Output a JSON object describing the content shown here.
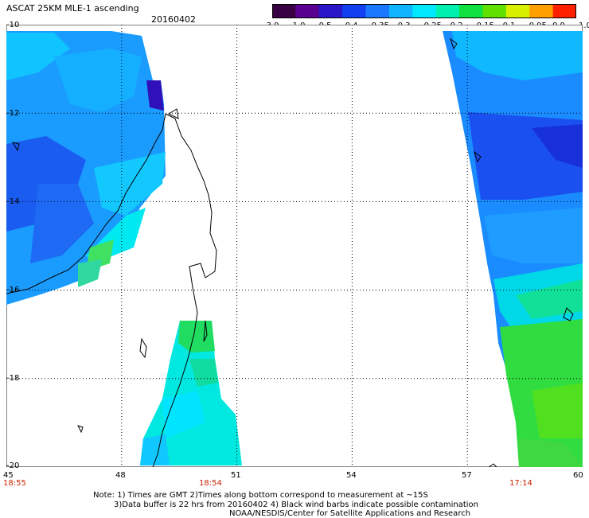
{
  "header": {
    "title": "ASCAT 25KM MLE-1 ascending",
    "date": "20160402"
  },
  "colorbar": {
    "labels": [
      "-3.0",
      "-1.0",
      "-0.5",
      "-0.4",
      "-0.35",
      "-0.3",
      "-0.25",
      "-0.2",
      "-0.15",
      "-0.1",
      "-0.05",
      "0.0",
      "1.0"
    ],
    "colors": [
      "#3a0044",
      "#5a0090",
      "#2a18c8",
      "#1040f0",
      "#1a78ff",
      "#10b4ff",
      "#00e8ff",
      "#00f0b0",
      "#10e040",
      "#60e000",
      "#d8f000",
      "#ffa000",
      "#ff2000"
    ]
  },
  "axes": {
    "y_ticks": [
      "-10",
      "-12",
      "-14",
      "-16",
      "-18",
      "-20"
    ],
    "x_ticks": [
      "45",
      "48",
      "51",
      "54",
      "57",
      "60"
    ],
    "x_values": [
      45,
      48,
      51,
      54,
      57,
      60
    ],
    "y_values": [
      -10,
      -12,
      -14,
      -16,
      -18,
      -20
    ]
  },
  "times": [
    "18:55",
    "18:54",
    "17:14"
  ],
  "notes": {
    "line1": "Note: 1) Times are GMT 2)Times along bottom correspond to measurement at ~15S",
    "line2": "3)Data buffer is 22 hrs from 20160402 4) Black wind barbs indicate possible contamination",
    "line3": "NOAA/NESDIS/Center for Satellite Applications and Research"
  }
}
